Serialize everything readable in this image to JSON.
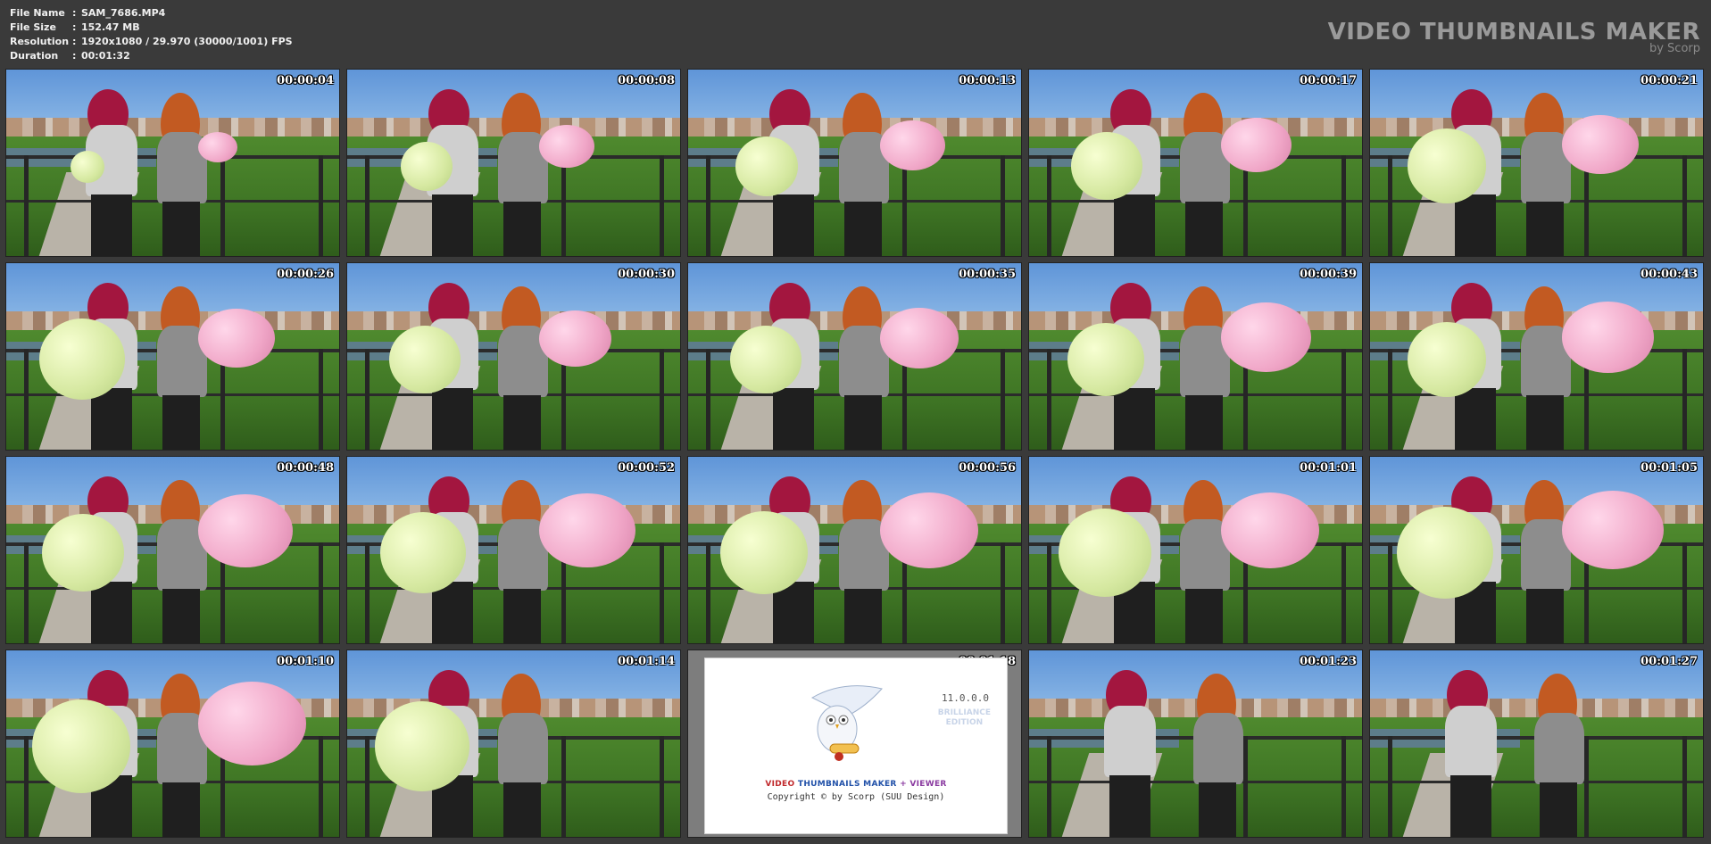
{
  "file_info": [
    {
      "key": "File Name",
      "value": "SAM_7686.MP4"
    },
    {
      "key": "File Size",
      "value": "152.47 MB"
    },
    {
      "key": "Resolution",
      "value": "1920x1080 / 29.970 (30000/1001) FPS"
    },
    {
      "key": "Duration",
      "value": "00:01:32"
    }
  ],
  "brand": {
    "title": "VIDEO THUMBNAILS MAKER",
    "subtitle": "by Scorp"
  },
  "thumbnails": [
    "00:00:04",
    "00:00:08",
    "00:00:13",
    "00:00:17",
    "00:00:21",
    "00:00:26",
    "00:00:30",
    "00:00:35",
    "00:00:39",
    "00:00:43",
    "00:00:48",
    "00:00:52",
    "00:00:56",
    "00:01:01",
    "00:01:05",
    "00:01:10",
    "00:01:14",
    "00:01:18",
    "00:01:23",
    "00:01:27"
  ],
  "splash": {
    "version": "11.0.0.0",
    "edition_line1": "BRILLIANCE",
    "edition_line2": "EDITION",
    "title_part1": "VIDEO",
    "title_part2": "THUMBNAILS MAKER",
    "title_part3": "+ VIEWER",
    "copyright": "Copyright © by Scorp (SUU Design)"
  },
  "colors": {
    "background": "#3a3a3a",
    "timestamp": "#ffffff",
    "brand": "#9a9a9a"
  }
}
